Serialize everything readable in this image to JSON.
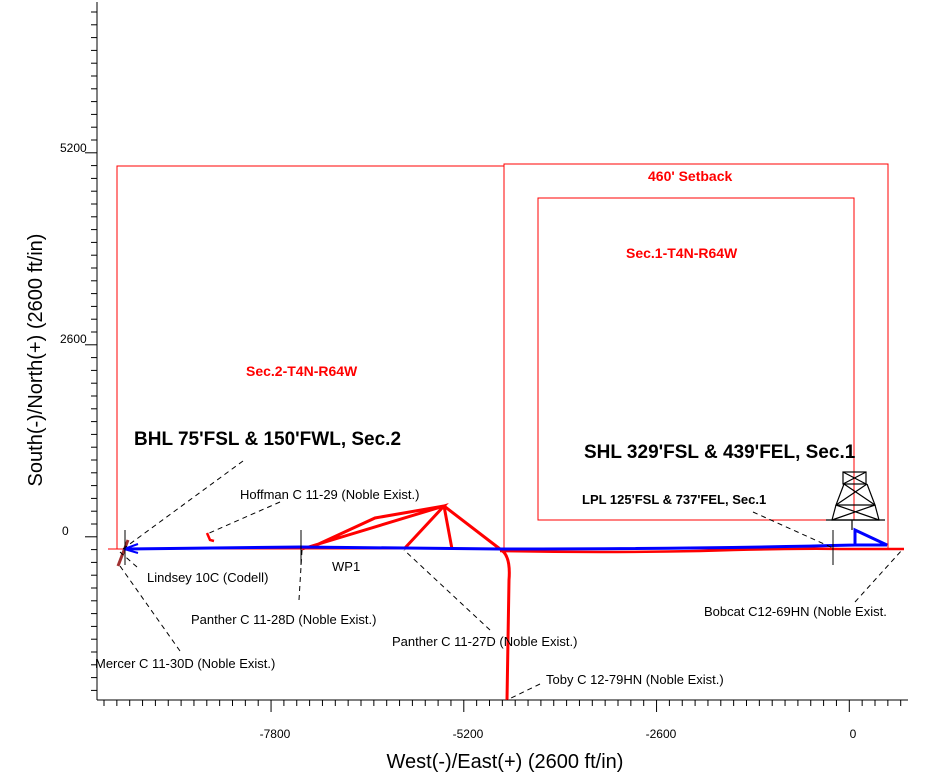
{
  "axes": {
    "x_title": "West(-)/East(+) (2600 ft/in)",
    "y_title": "South(-)/North(+) (2600 ft/in)",
    "x_ticks": [
      "-7800",
      "-5200",
      "-2600",
      "0"
    ],
    "y_ticks": [
      "5200",
      "2600",
      "0"
    ]
  },
  "sections": {
    "sec2": "Sec.2-T4N-R64W",
    "sec1": "Sec.1-T4N-R64W",
    "setback": "460' Setback"
  },
  "labels": {
    "bhl": "BHL 75'FSL & 150'FWL, Sec.2",
    "shl": "SHL 329'FSL & 439'FEL, Sec.1",
    "lpl": "LPL 125'FSL & 737'FEL, Sec.1",
    "wp1": "WP1"
  },
  "wells": {
    "hoffman": "Hoffman C 11-29 (Noble Exist.)",
    "lindsey": "Lindsey 10C (Codell)",
    "panther28": "Panther C 11-28D (Noble Exist.)",
    "panther27": "Panther C 11-27D (Noble Exist.)",
    "mercer": "Mercer C 11-30D (Noble Exist.)",
    "toby": "Toby C 12-79HN (Noble Exist.)",
    "bobcat": "Bobcat C12-69HN (Noble Exist."
  },
  "colors": {
    "lease": "#ff0000",
    "plan": "#0000ff",
    "text": "#000000"
  },
  "icons": [
    "rig-icon"
  ]
}
